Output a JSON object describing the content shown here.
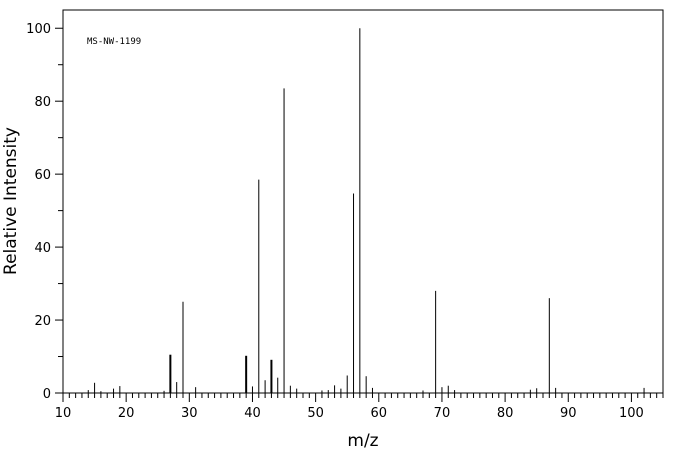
{
  "chart_data": {
    "type": "bar",
    "annotation": "MS-NW-1199",
    "xlabel": "m/z",
    "ylabel": "Relative Intensity",
    "xlim": [
      10,
      105
    ],
    "ylim": [
      0,
      105
    ],
    "x_ticks": [
      "10",
      "20",
      "30",
      "40",
      "50",
      "60",
      "70",
      "80",
      "90",
      "100"
    ],
    "y_ticks": [
      "0",
      "20",
      "40",
      "60",
      "80",
      "100"
    ],
    "grid": false,
    "legend": "none",
    "series": [
      {
        "x": [
          14,
          15,
          16,
          18,
          19,
          26,
          27,
          28,
          29,
          31,
          39,
          40,
          41,
          42,
          43,
          44,
          45,
          46,
          47,
          51,
          52,
          53,
          54,
          55,
          56,
          57,
          58,
          59,
          67,
          69,
          70,
          71,
          72,
          84,
          85,
          87,
          88,
          102
        ],
        "values": [
          0.8,
          2.8,
          0.5,
          1.2,
          1.9,
          0.6,
          10.5,
          3.0,
          25.0,
          1.6,
          10.2,
          1.8,
          58.5,
          3.5,
          9.1,
          4.2,
          83.5,
          2.0,
          1.2,
          0.7,
          0.8,
          2.1,
          1.2,
          4.8,
          54.7,
          100,
          4.6,
          1.4,
          0.7,
          28.0,
          1.6,
          2.0,
          0.8,
          0.9,
          1.3,
          26.0,
          1.4,
          1.4
        ]
      }
    ]
  }
}
